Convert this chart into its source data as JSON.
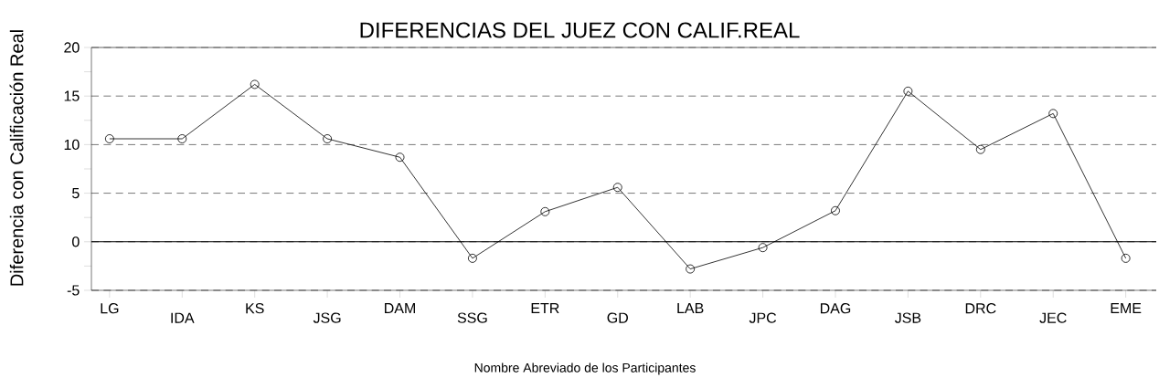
{
  "chart_data": {
    "type": "line",
    "title": "DIFERENCIAS DEL JUEZ CON CALIF.REAL",
    "xlabel": "Nombre Abreviado de los Participantes",
    "ylabel": "Diferencia con Calificación Real",
    "categories": [
      "LG",
      "IDA",
      "KS",
      "JSG",
      "DAM",
      "SSG",
      "ETR",
      "GD",
      "LAB",
      "JPC",
      "DAG",
      "JSB",
      "DRC",
      "JEC",
      "EME"
    ],
    "values": [
      10.6,
      10.6,
      16.2,
      10.6,
      8.7,
      -1.7,
      3.1,
      5.6,
      -2.8,
      -0.6,
      3.2,
      15.5,
      9.5,
      13.2,
      -1.7
    ],
    "color": "#000000",
    "ylim": [
      -5,
      20
    ],
    "yticks": [
      -5,
      {
        "value": -2.5,
        "label": null
      },
      0,
      {
        "value": 2.5,
        "label": null
      },
      5,
      {
        "value": 7.5,
        "label": null
      },
      10,
      {
        "value": 12.5,
        "label": null
      },
      15,
      {
        "value": 17.5,
        "label": null
      },
      20
    ],
    "grid": "y",
    "line_style": "solid",
    "marker": "circle",
    "ref_lines": [
      {
        "axis": "y",
        "value": 0,
        "color": "#000000",
        "line_style": "solid"
      }
    ]
  }
}
